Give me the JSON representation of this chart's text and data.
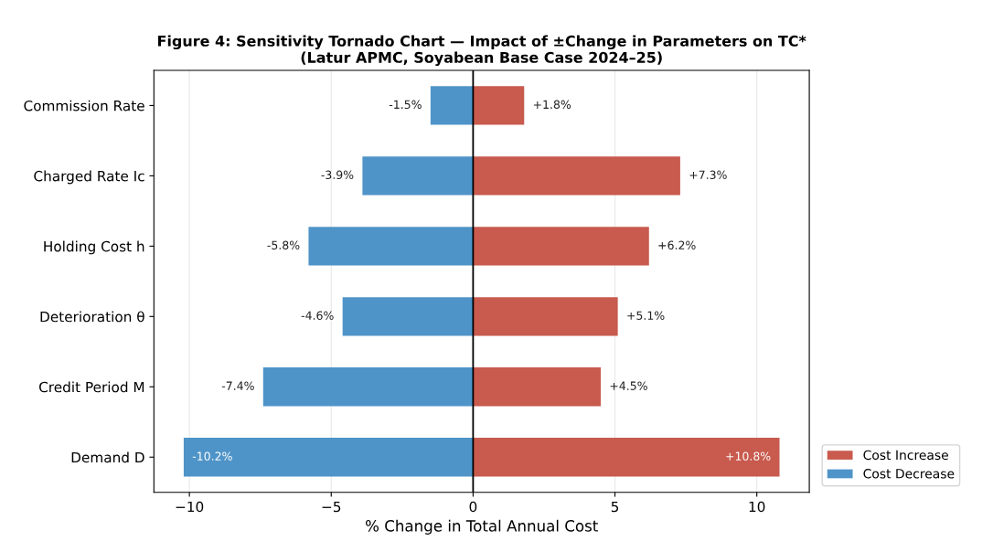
{
  "chart_data": {
    "type": "bar",
    "orientation": "horizontal",
    "stacked": true,
    "title": "Figure 4: Sensitivity Tornado Chart — Impact of ±Change in Parameters on TC*\n(Latur APMC, Soyabean Base Case 2024–25)",
    "xlabel": "% Change in Total Annual Cost",
    "categories": [
      "Commission Rate",
      "Charged Rate Ic",
      "Holding Cost h",
      "Deterioration θ",
      "Credit Period M",
      "Demand D"
    ],
    "series": [
      {
        "name": "Cost Increase",
        "color": "#c85a4e",
        "values": [
          1.8,
          7.3,
          6.2,
          5.1,
          4.5,
          10.8
        ],
        "value_labels": [
          "+1.8%",
          "+7.3%",
          "+6.2%",
          "+5.1%",
          "+4.5%",
          "+10.8%"
        ]
      },
      {
        "name": "Cost Decrease",
        "color": "#4f94c8",
        "values": [
          -1.5,
          -3.9,
          -5.8,
          -4.6,
          -7.4,
          -10.2
        ],
        "value_labels": [
          "-1.5%",
          "-3.9%",
          "-5.8%",
          "-4.6%",
          "-7.4%",
          "-10.2%"
        ]
      }
    ],
    "xlim": [
      -11.25,
      11.85
    ],
    "xticks": [
      {
        "value": -10,
        "label": "−10"
      },
      {
        "value": -5,
        "label": "−5"
      },
      0,
      5,
      10
    ],
    "ref_lines": [
      {
        "axis": "x",
        "value": 0,
        "color": "#000000"
      }
    ],
    "grid": "x",
    "legend": "bottom right"
  }
}
